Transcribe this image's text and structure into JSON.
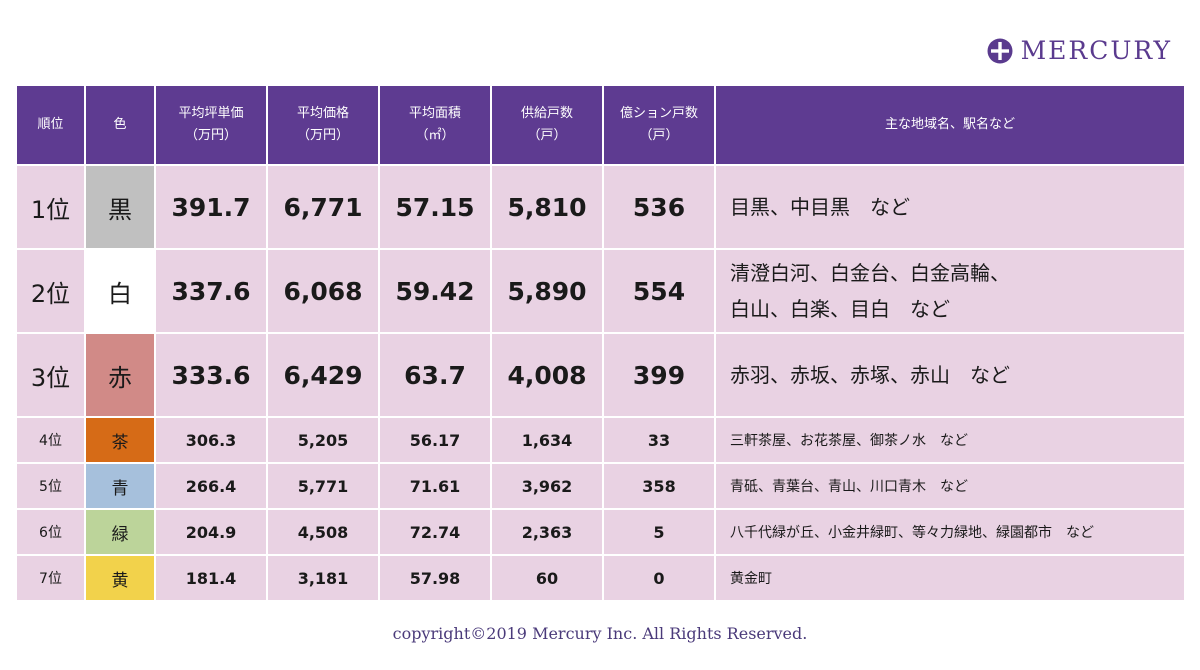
{
  "logo": {
    "text": "MERCURY",
    "color": "#5a3a8e",
    "icon": "cross-circle-icon"
  },
  "table": {
    "header_color": "#5e3b91",
    "cell_color": "#e9d2e3",
    "headers": [
      {
        "line1": "順位",
        "line2": ""
      },
      {
        "line1": "色",
        "line2": ""
      },
      {
        "line1": "平均坪単価",
        "line2": "（万円）"
      },
      {
        "line1": "平均価格",
        "line2": "（万円）"
      },
      {
        "line1": "平均面積",
        "line2": "（㎡）"
      },
      {
        "line1": "供給戸数",
        "line2": "（戸）"
      },
      {
        "line1": "億ション戸数",
        "line2": "（戸）"
      },
      {
        "line1": "主な地域名、駅名など",
        "line2": ""
      }
    ],
    "rows": [
      {
        "rank": "1位",
        "color": "黒",
        "swatch": "#c0c0c0",
        "unit_price": "391.7",
        "price": "6,771",
        "area_size": "57.15",
        "units": "5,810",
        "luxury": "536",
        "areas": [
          "目黒、中目黒　など"
        ]
      },
      {
        "rank": "2位",
        "color": "白",
        "swatch": "#ffffff",
        "unit_price": "337.6",
        "price": "6,068",
        "area_size": "59.42",
        "units": "5,890",
        "luxury": "554",
        "areas": [
          "清澄白河、白金台、白金高輪、",
          "白山、白楽、目白　など"
        ]
      },
      {
        "rank": "3位",
        "color": "赤",
        "swatch": "#d18a87",
        "unit_price": "333.6",
        "price": "6,429",
        "area_size": "63.7",
        "units": "4,008",
        "luxury": "399",
        "areas": [
          "赤羽、赤坂、赤塚、赤山　など"
        ]
      },
      {
        "rank": "4位",
        "color": "茶",
        "swatch": "#d66b17",
        "unit_price": "306.3",
        "price": "5,205",
        "area_size": "56.17",
        "units": "1,634",
        "luxury": "33",
        "areas": [
          "三軒茶屋、お花茶屋、御茶ノ水　など"
        ]
      },
      {
        "rank": "5位",
        "color": "青",
        "swatch": "#a6c0dc",
        "unit_price": "266.4",
        "price": "5,771",
        "area_size": "71.61",
        "units": "3,962",
        "luxury": "358",
        "areas": [
          "青砥、青葉台、青山、川口青木　など"
        ]
      },
      {
        "rank": "6位",
        "color": "緑",
        "swatch": "#bcd49a",
        "unit_price": "204.9",
        "price": "4,508",
        "area_size": "72.74",
        "units": "2,363",
        "luxury": "5",
        "areas": [
          "八千代緑が丘、小金井緑町、等々力緑地、緑園都市　など"
        ]
      },
      {
        "rank": "7位",
        "color": "黄",
        "swatch": "#f2d24b",
        "unit_price": "181.4",
        "price": "3,181",
        "area_size": "57.98",
        "units": "60",
        "luxury": "0",
        "areas": [
          "黄金町"
        ]
      }
    ]
  },
  "footer": {
    "copyright": "copyright©2019 Mercury Inc. All Rights Reserved."
  }
}
